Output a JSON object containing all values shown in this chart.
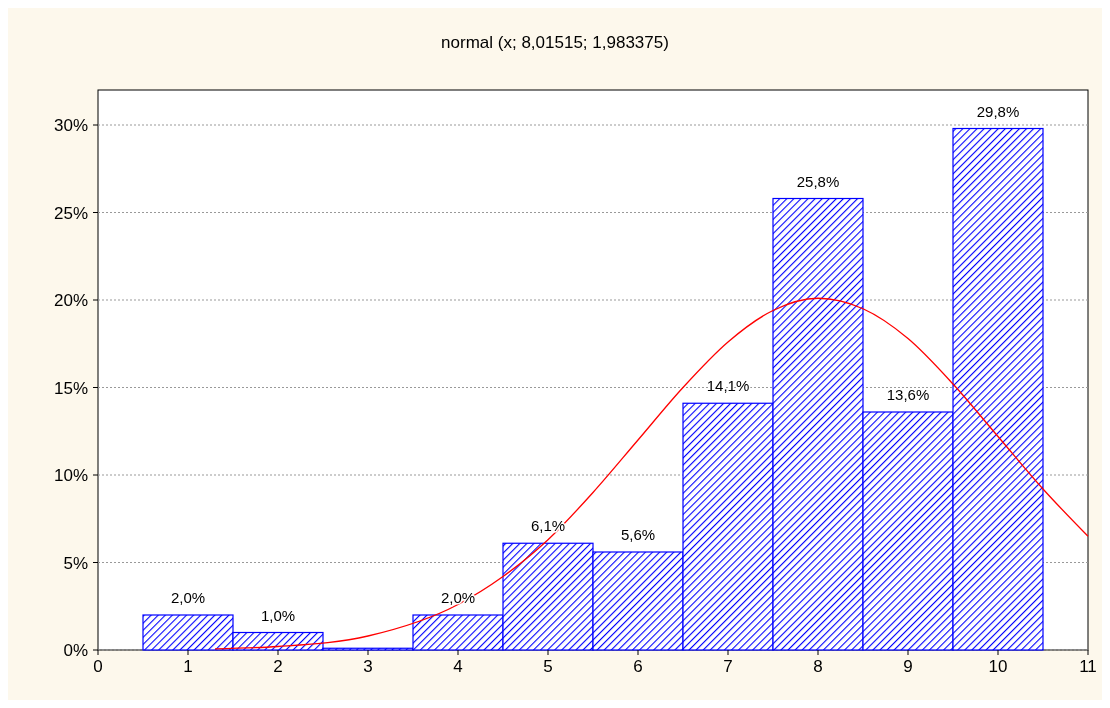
{
  "chart_data": {
    "type": "histogram",
    "title": "normal (x; 8,01515; 1,983375)",
    "bins": [
      0.5,
      1.5,
      2.5,
      3.5,
      4.5,
      5.5,
      6.5,
      7.5,
      8.5,
      9.5,
      10.5
    ],
    "values": [
      2.0,
      1.0,
      0.1,
      2.0,
      6.1,
      5.6,
      14.1,
      25.8,
      13.6,
      29.8
    ],
    "value_labels": [
      "2,0%",
      "1,0%",
      null,
      "2,0%",
      "6,1%",
      "5,6%",
      "14,1%",
      "25,8%",
      "13,6%",
      "29,8%"
    ],
    "color": "#0000ff",
    "series": [
      {
        "type": "line",
        "color": "#ff0000",
        "x": [
          1.3,
          2,
          3,
          4,
          4.5,
          5,
          5.5,
          6,
          6.5,
          7,
          7.5,
          8,
          8.5,
          9,
          9.5,
          10,
          10.5,
          11
        ],
        "values": [
          0.07,
          0.2,
          0.8,
          2.6,
          4.2,
          6.3,
          9.0,
          12.0,
          15.0,
          17.6,
          19.4,
          20.1,
          19.5,
          17.8,
          15.2,
          12.2,
          9.2,
          6.5
        ]
      }
    ],
    "xlim": [
      0,
      11
    ],
    "xticks": [
      0,
      1,
      2,
      3,
      4,
      5,
      6,
      7,
      8,
      9,
      10,
      11
    ],
    "ylim": [
      0,
      32
    ],
    "yticks": [
      {
        "value": 0,
        "label": "0%"
      },
      {
        "value": 5,
        "label": "5%"
      },
      {
        "value": 10,
        "label": "10%"
      },
      {
        "value": 15,
        "label": "15%"
      },
      {
        "value": 20,
        "label": "20%"
      },
      {
        "value": 25,
        "label": "25%"
      },
      {
        "value": 30,
        "label": "30%"
      }
    ],
    "grid": "y"
  }
}
